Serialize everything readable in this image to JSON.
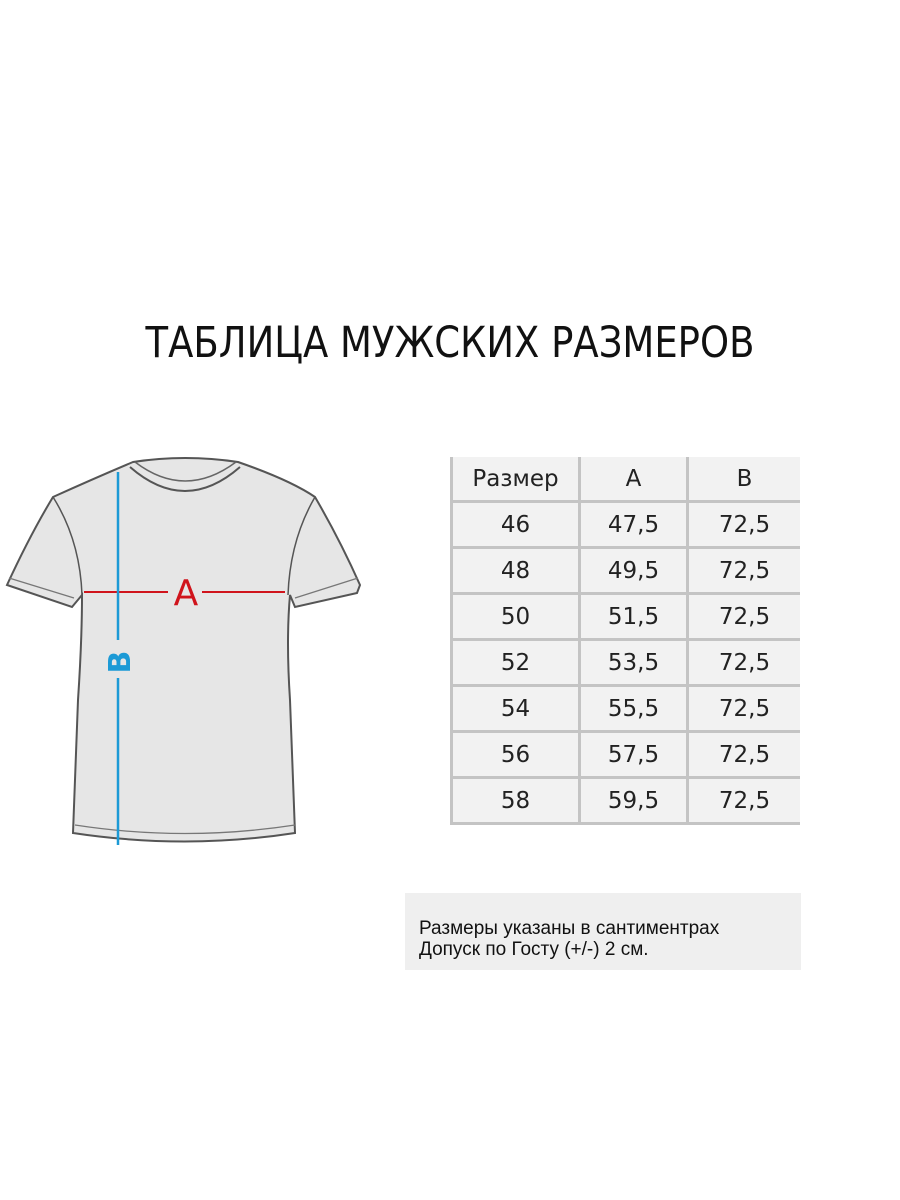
{
  "title": "ТАБЛИЦА МУЖСКИХ РАЗМЕРОВ",
  "diagram": {
    "label_a": "A",
    "label_b": "B",
    "color_a": "#d0141c",
    "color_b": "#1c9ad6"
  },
  "table": {
    "headers": [
      "Размер",
      "A",
      "B"
    ],
    "rows": [
      [
        "46",
        "47,5",
        "72,5"
      ],
      [
        "48",
        "49,5",
        "72,5"
      ],
      [
        "50",
        "51,5",
        "72,5"
      ],
      [
        "52",
        "53,5",
        "72,5"
      ],
      [
        "54",
        "55,5",
        "72,5"
      ],
      [
        "56",
        "57,5",
        "72,5"
      ],
      [
        "58",
        "59,5",
        "72,5"
      ]
    ]
  },
  "note": {
    "line1": "Размеры указаны в сантиментрах",
    "line2": "Допуск по Госту (+/-) 2 см."
  }
}
